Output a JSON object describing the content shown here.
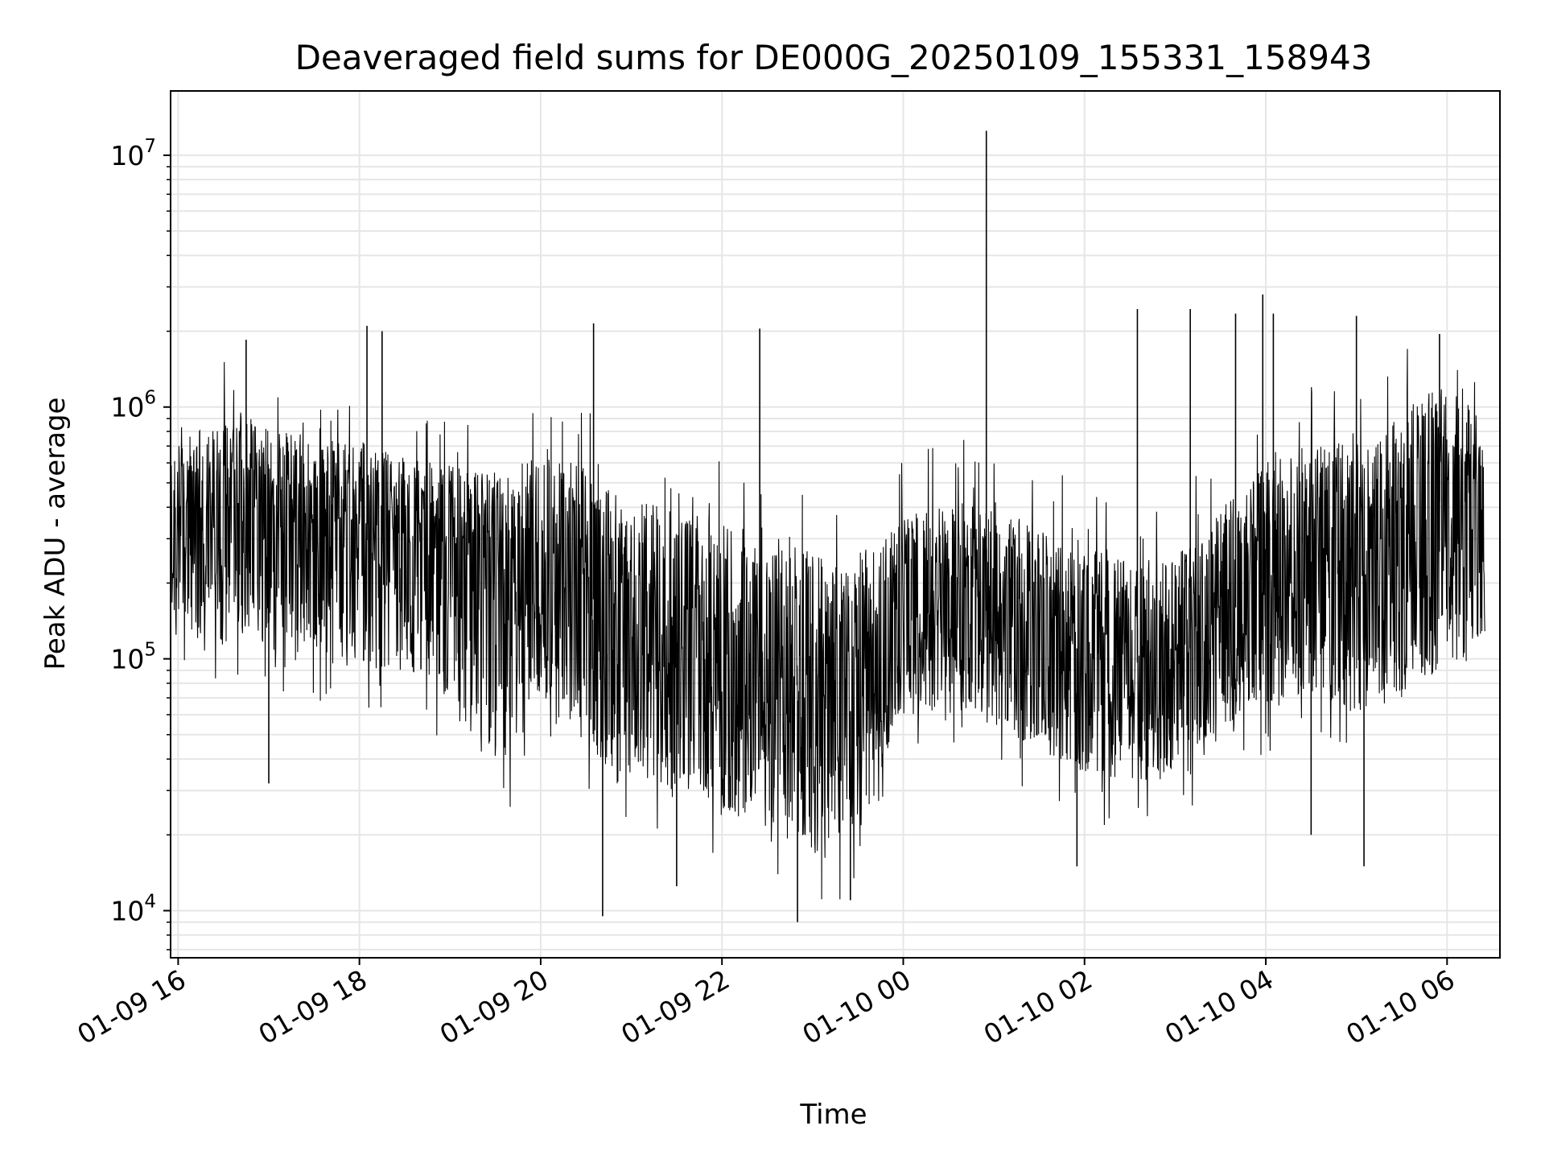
{
  "chart_data": {
    "type": "line",
    "title": "Deaveraged field sums for DE000G_20250109_155331_158943",
    "xlabel": "Time",
    "ylabel": "Peak ADU - average",
    "yscale": "log",
    "xlim": [
      "2025-01-09 15:55",
      "2025-01-10 06:35"
    ],
    "ylim": [
      6500,
      18000000
    ],
    "grid": true,
    "line_color": "#000000",
    "grid_color": "#e6e6e6",
    "x_ticks": [
      {
        "value": "2025-01-09 16:00",
        "label": "01-09 16"
      },
      {
        "value": "2025-01-09 18:00",
        "label": "01-09 18"
      },
      {
        "value": "2025-01-09 20:00",
        "label": "01-09 20"
      },
      {
        "value": "2025-01-09 22:00",
        "label": "01-09 22"
      },
      {
        "value": "2025-01-10 00:00",
        "label": "01-10 00"
      },
      {
        "value": "2025-01-10 02:00",
        "label": "01-10 02"
      },
      {
        "value": "2025-01-10 04:00",
        "label": "01-10 04"
      },
      {
        "value": "2025-01-10 06:00",
        "label": "01-10 06"
      }
    ],
    "y_ticks": [
      {
        "value": 10000,
        "base": "10",
        "exp": "4"
      },
      {
        "value": 100000,
        "base": "10",
        "exp": "5"
      },
      {
        "value": 1000000,
        "base": "10",
        "exp": "6"
      },
      {
        "value": 10000000,
        "base": "10",
        "exp": "7"
      }
    ],
    "series": [
      {
        "x": [
          "2025-01-09 15:55",
          "2025-01-09 16:10",
          "2025-01-09 16:25",
          "2025-01-09 16:40",
          "2025-01-09 16:55",
          "2025-01-09 17:10",
          "2025-01-09 17:25",
          "2025-01-09 17:40",
          "2025-01-09 17:55",
          "2025-01-09 18:10",
          "2025-01-09 18:25",
          "2025-01-09 18:40",
          "2025-01-09 18:55",
          "2025-01-09 19:10",
          "2025-01-09 19:25",
          "2025-01-09 19:40",
          "2025-01-09 19:55",
          "2025-01-09 20:10",
          "2025-01-09 20:25",
          "2025-01-09 20:40",
          "2025-01-09 20:55",
          "2025-01-09 21:10",
          "2025-01-09 21:25",
          "2025-01-09 21:40",
          "2025-01-09 21:55",
          "2025-01-09 22:10",
          "2025-01-09 22:25",
          "2025-01-09 22:40",
          "2025-01-09 22:55",
          "2025-01-09 23:10",
          "2025-01-09 23:25",
          "2025-01-09 23:40",
          "2025-01-09 23:55",
          "2025-01-10 00:10",
          "2025-01-10 00:25",
          "2025-01-10 00:40",
          "2025-01-10 00:55",
          "2025-01-10 01:10",
          "2025-01-10 01:25",
          "2025-01-10 01:40",
          "2025-01-10 01:55",
          "2025-01-10 02:10",
          "2025-01-10 02:25",
          "2025-01-10 02:40",
          "2025-01-10 02:55",
          "2025-01-10 03:10",
          "2025-01-10 03:25",
          "2025-01-10 03:40",
          "2025-01-10 03:55",
          "2025-01-10 04:10",
          "2025-01-10 04:25",
          "2025-01-10 04:40",
          "2025-01-10 04:55",
          "2025-01-10 05:10",
          "2025-01-10 05:25",
          "2025-01-10 05:40",
          "2025-01-10 05:55",
          "2025-01-10 06:10",
          "2025-01-10 06:25"
        ],
        "median": [
          300000,
          330000,
          360000,
          380000,
          370000,
          360000,
          340000,
          330000,
          310000,
          290000,
          280000,
          260000,
          250000,
          240000,
          220000,
          210000,
          230000,
          240000,
          200000,
          160000,
          140000,
          130000,
          120000,
          110000,
          100000,
          95000,
          85000,
          75000,
          65000,
          60000,
          62000,
          70000,
          120000,
          140000,
          150000,
          160000,
          155000,
          140000,
          130000,
          120000,
          110000,
          105000,
          100000,
          95000,
          100000,
          110000,
          130000,
          160000,
          200000,
          230000,
          240000,
          250000,
          230000,
          220000,
          280000,
          380000,
          420000,
          400000,
          350000
        ],
        "low": [
          150000,
          120000,
          110000,
          100000,
          110000,
          100000,
          110000,
          100000,
          100000,
          90000,
          90000,
          80000,
          70000,
          50000,
          40000,
          40000,
          60000,
          70000,
          50000,
          40000,
          35000,
          35000,
          30000,
          28000,
          26000,
          24000,
          22000,
          20000,
          18000,
          16000,
          18000,
          25000,
          60000,
          60000,
          60000,
          60000,
          55000,
          50000,
          45000,
          40000,
          35000,
          35000,
          33000,
          32000,
          35000,
          40000,
          45000,
          55000,
          65000,
          70000,
          70000,
          65000,
          60000,
          60000,
          70000,
          80000,
          90000,
          100000,
          110000
        ],
        "high": [
          650000,
          800000,
          850000,
          900000,
          850000,
          800000,
          780000,
          750000,
          700000,
          680000,
          650000,
          620000,
          600000,
          580000,
          550000,
          550000,
          650000,
          700000,
          600000,
          500000,
          450000,
          420000,
          400000,
          380000,
          360000,
          340000,
          320000,
          300000,
          280000,
          260000,
          260000,
          280000,
          350000,
          380000,
          400000,
          420000,
          400000,
          380000,
          350000,
          320000,
          300000,
          280000,
          260000,
          250000,
          270000,
          300000,
          350000,
          450000,
          550000,
          650000,
          700000,
          750000,
          700000,
          700000,
          900000,
          1100000,
          1200000,
          1100000,
          900000
        ]
      }
    ],
    "spikes": [
      {
        "x": "2025-01-09 16:45",
        "y": 1850000
      },
      {
        "x": "2025-01-09 17:00",
        "y": 32000
      },
      {
        "x": "2025-01-09 18:05",
        "y": 2100000
      },
      {
        "x": "2025-01-09 18:15",
        "y": 2000000
      },
      {
        "x": "2025-01-09 20:35",
        "y": 2150000
      },
      {
        "x": "2025-01-09 20:41",
        "y": 9500
      },
      {
        "x": "2025-01-09 21:30",
        "y": 12500
      },
      {
        "x": "2025-01-09 22:25",
        "y": 2050000
      },
      {
        "x": "2025-01-09 22:50",
        "y": 9000
      },
      {
        "x": "2025-01-09 23:25",
        "y": 11000
      },
      {
        "x": "2025-01-10 00:55",
        "y": 12500000
      },
      {
        "x": "2025-01-10 01:55",
        "y": 15000
      },
      {
        "x": "2025-01-10 02:35",
        "y": 2450000
      },
      {
        "x": "2025-01-10 03:10",
        "y": 2450000
      },
      {
        "x": "2025-01-10 03:40",
        "y": 2350000
      },
      {
        "x": "2025-01-10 03:58",
        "y": 2800000
      },
      {
        "x": "2025-01-10 04:05",
        "y": 2350000
      },
      {
        "x": "2025-01-10 04:30",
        "y": 20000
      },
      {
        "x": "2025-01-10 05:00",
        "y": 2300000
      },
      {
        "x": "2025-01-10 05:05",
        "y": 15000
      },
      {
        "x": "2025-01-10 05:55",
        "y": 1950000
      }
    ]
  }
}
